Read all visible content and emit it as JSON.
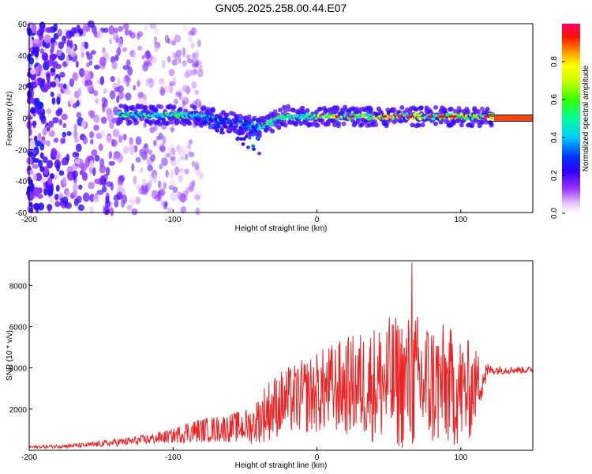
{
  "title": "GN05.2025.258.00.44.E07",
  "colors": {
    "snr_line": "#ee2222",
    "frame": "#000000",
    "band_edge": "#111111"
  },
  "chart_data": [
    {
      "type": "heatmap",
      "name": "spectrogram",
      "xlabel": "Height of straight line (km)",
      "ylabel": "Frequency (Hz)",
      "xlim": [
        -200,
        150
      ],
      "ylim": [
        -60,
        60
      ],
      "xticks": [
        -200,
        -100,
        0,
        100
      ],
      "xtick_labels": [
        "-200",
        "-100",
        "0",
        "100"
      ],
      "yticks": [
        -60,
        -40,
        -20,
        0,
        20,
        40,
        60
      ],
      "ytick_labels": [
        "-60",
        "-40",
        "-20",
        "0",
        "20",
        "40",
        "60"
      ],
      "colorbar": {
        "label": "Normalized spectral amplitude",
        "range": [
          0,
          1
        ],
        "ticks": [
          0.0,
          0.2,
          0.4,
          0.6,
          0.8
        ],
        "tick_labels": [
          "0.0",
          "0.2",
          "0.4",
          "0.6",
          "0.8"
        ]
      },
      "features": {
        "noise_region_x": [
          -200,
          -100
        ],
        "signal_start_x": -138,
        "dip_min_freq": -23,
        "dip_x": [
          -85,
          -40
        ],
        "band_start_x": 123,
        "band_half_width_hz": 2
      }
    },
    {
      "type": "line",
      "name": "snr",
      "xlabel": "Height of straight line (km)",
      "ylabel": "SNR (10 * v/v)",
      "xlim": [
        -200,
        150
      ],
      "ylim": [
        0,
        9200
      ],
      "xticks": [
        -200,
        -100,
        0,
        100
      ],
      "xtick_labels": [
        "-200",
        "-100",
        "0",
        "100"
      ],
      "yticks": [
        2000,
        4000,
        6000,
        8000
      ],
      "ytick_labels": [
        "2000",
        "4000",
        "6000",
        "8000"
      ],
      "envelope": {
        "x": [
          -200,
          -160,
          -120,
          -100,
          -90,
          -60,
          -45,
          -35,
          -25,
          -10,
          10,
          30,
          50,
          70,
          90,
          105,
          120,
          130,
          150
        ],
        "base": [
          150,
          250,
          500,
          700,
          900,
          1100,
          1200,
          1900,
          2300,
          2600,
          3000,
          3200,
          3300,
          3300,
          3100,
          2800,
          3900,
          3900,
          3900
        ],
        "amp": [
          60,
          120,
          250,
          350,
          550,
          700,
          900,
          1500,
          1600,
          1800,
          2200,
          2600,
          3200,
          3400,
          3000,
          2600,
          250,
          200,
          150
        ]
      },
      "peak": {
        "x": 66,
        "y": 9100
      }
    }
  ]
}
